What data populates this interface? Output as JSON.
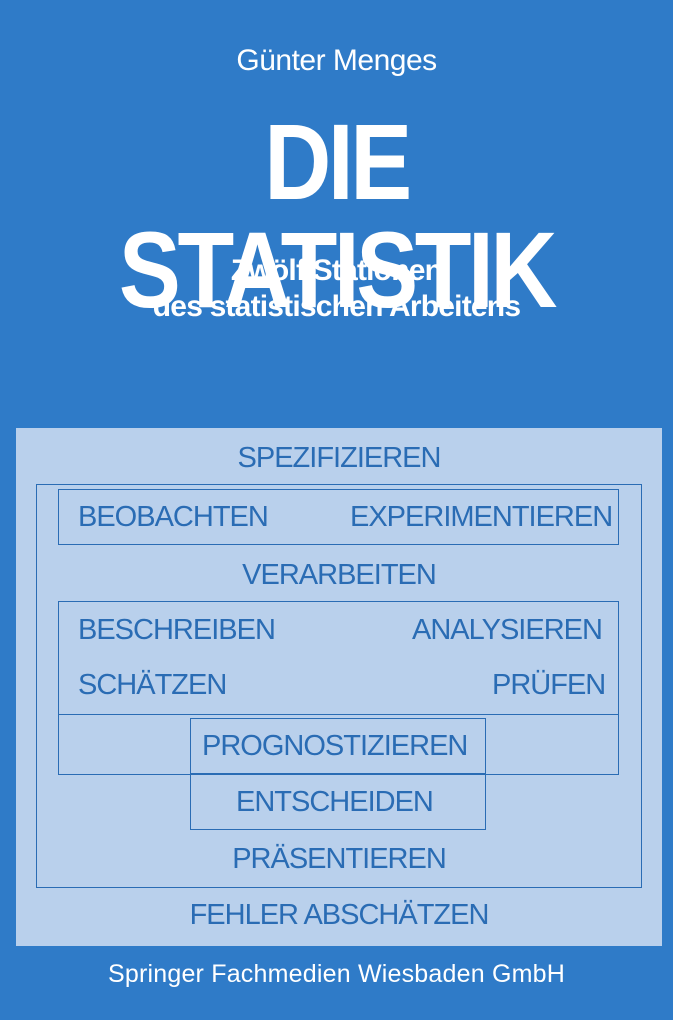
{
  "author": "Günter Menges",
  "title": "DIE STATISTIK",
  "subtitle_line1": "Zwölf Stationen",
  "subtitle_line2": "des statistischen Arbeitens",
  "diagram": {
    "spezifizieren": "SPEZIFIZIEREN",
    "beobachten": "BEOBACHTEN",
    "experimentieren": "EXPERIMENTIEREN",
    "verarbeiten": "VERARBEITEN",
    "beschreiben": "BESCHREIBEN",
    "analysieren": "ANALYSIEREN",
    "schaetzen": "SCHÄTZEN",
    "pruefen": "PRÜFEN",
    "prognostizieren": "PROGNOSTIZIEREN",
    "entscheiden": "ENTSCHEIDEN",
    "praesentieren": "PRÄSENTIEREN",
    "fehler_abschaetzen": "FEHLER ABSCHÄTZEN"
  },
  "publisher": "Springer Fachmedien Wiesbaden GmbH",
  "colors": {
    "background": "#2f7bc8",
    "panel": "#b9d0ec",
    "diagram_ink": "#2a6cb4"
  }
}
